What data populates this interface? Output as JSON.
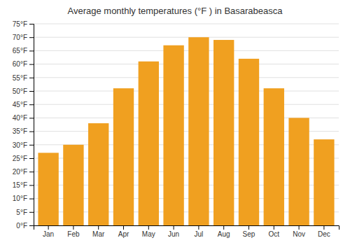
{
  "chart_data": {
    "type": "bar",
    "title": "Average monthly temperatures (°F ) in Basarabeasca",
    "categories": [
      "Jan",
      "Feb",
      "Mar",
      "Apr",
      "May",
      "Jun",
      "Jul",
      "Aug",
      "Sep",
      "Oct",
      "Nov",
      "Dec"
    ],
    "values": [
      27,
      30,
      38,
      51,
      61,
      67,
      70,
      69,
      62,
      51,
      40,
      32
    ],
    "color": "#F0A020",
    "ylim": [
      0,
      75
    ],
    "yticks": [
      {
        "value": 0,
        "label": "0°F"
      },
      {
        "value": 5,
        "label": "5°F"
      },
      {
        "value": 10,
        "label": "10°F"
      },
      {
        "value": 15,
        "label": "15°F"
      },
      {
        "value": 20,
        "label": "20°F"
      },
      {
        "value": 25,
        "label": "25°F"
      },
      {
        "value": 30,
        "label": "30°F"
      },
      {
        "value": 35,
        "label": "35°F"
      },
      {
        "value": 40,
        "label": "40°F"
      },
      {
        "value": 45,
        "label": "45°F"
      },
      {
        "value": 50,
        "label": "50°F"
      },
      {
        "value": 55,
        "label": "55°F"
      },
      {
        "value": 60,
        "label": "60°F"
      },
      {
        "value": 65,
        "label": "65°F"
      },
      {
        "value": 70,
        "label": "70°F"
      },
      {
        "value": 75,
        "label": "75°F"
      }
    ],
    "grid": true
  }
}
